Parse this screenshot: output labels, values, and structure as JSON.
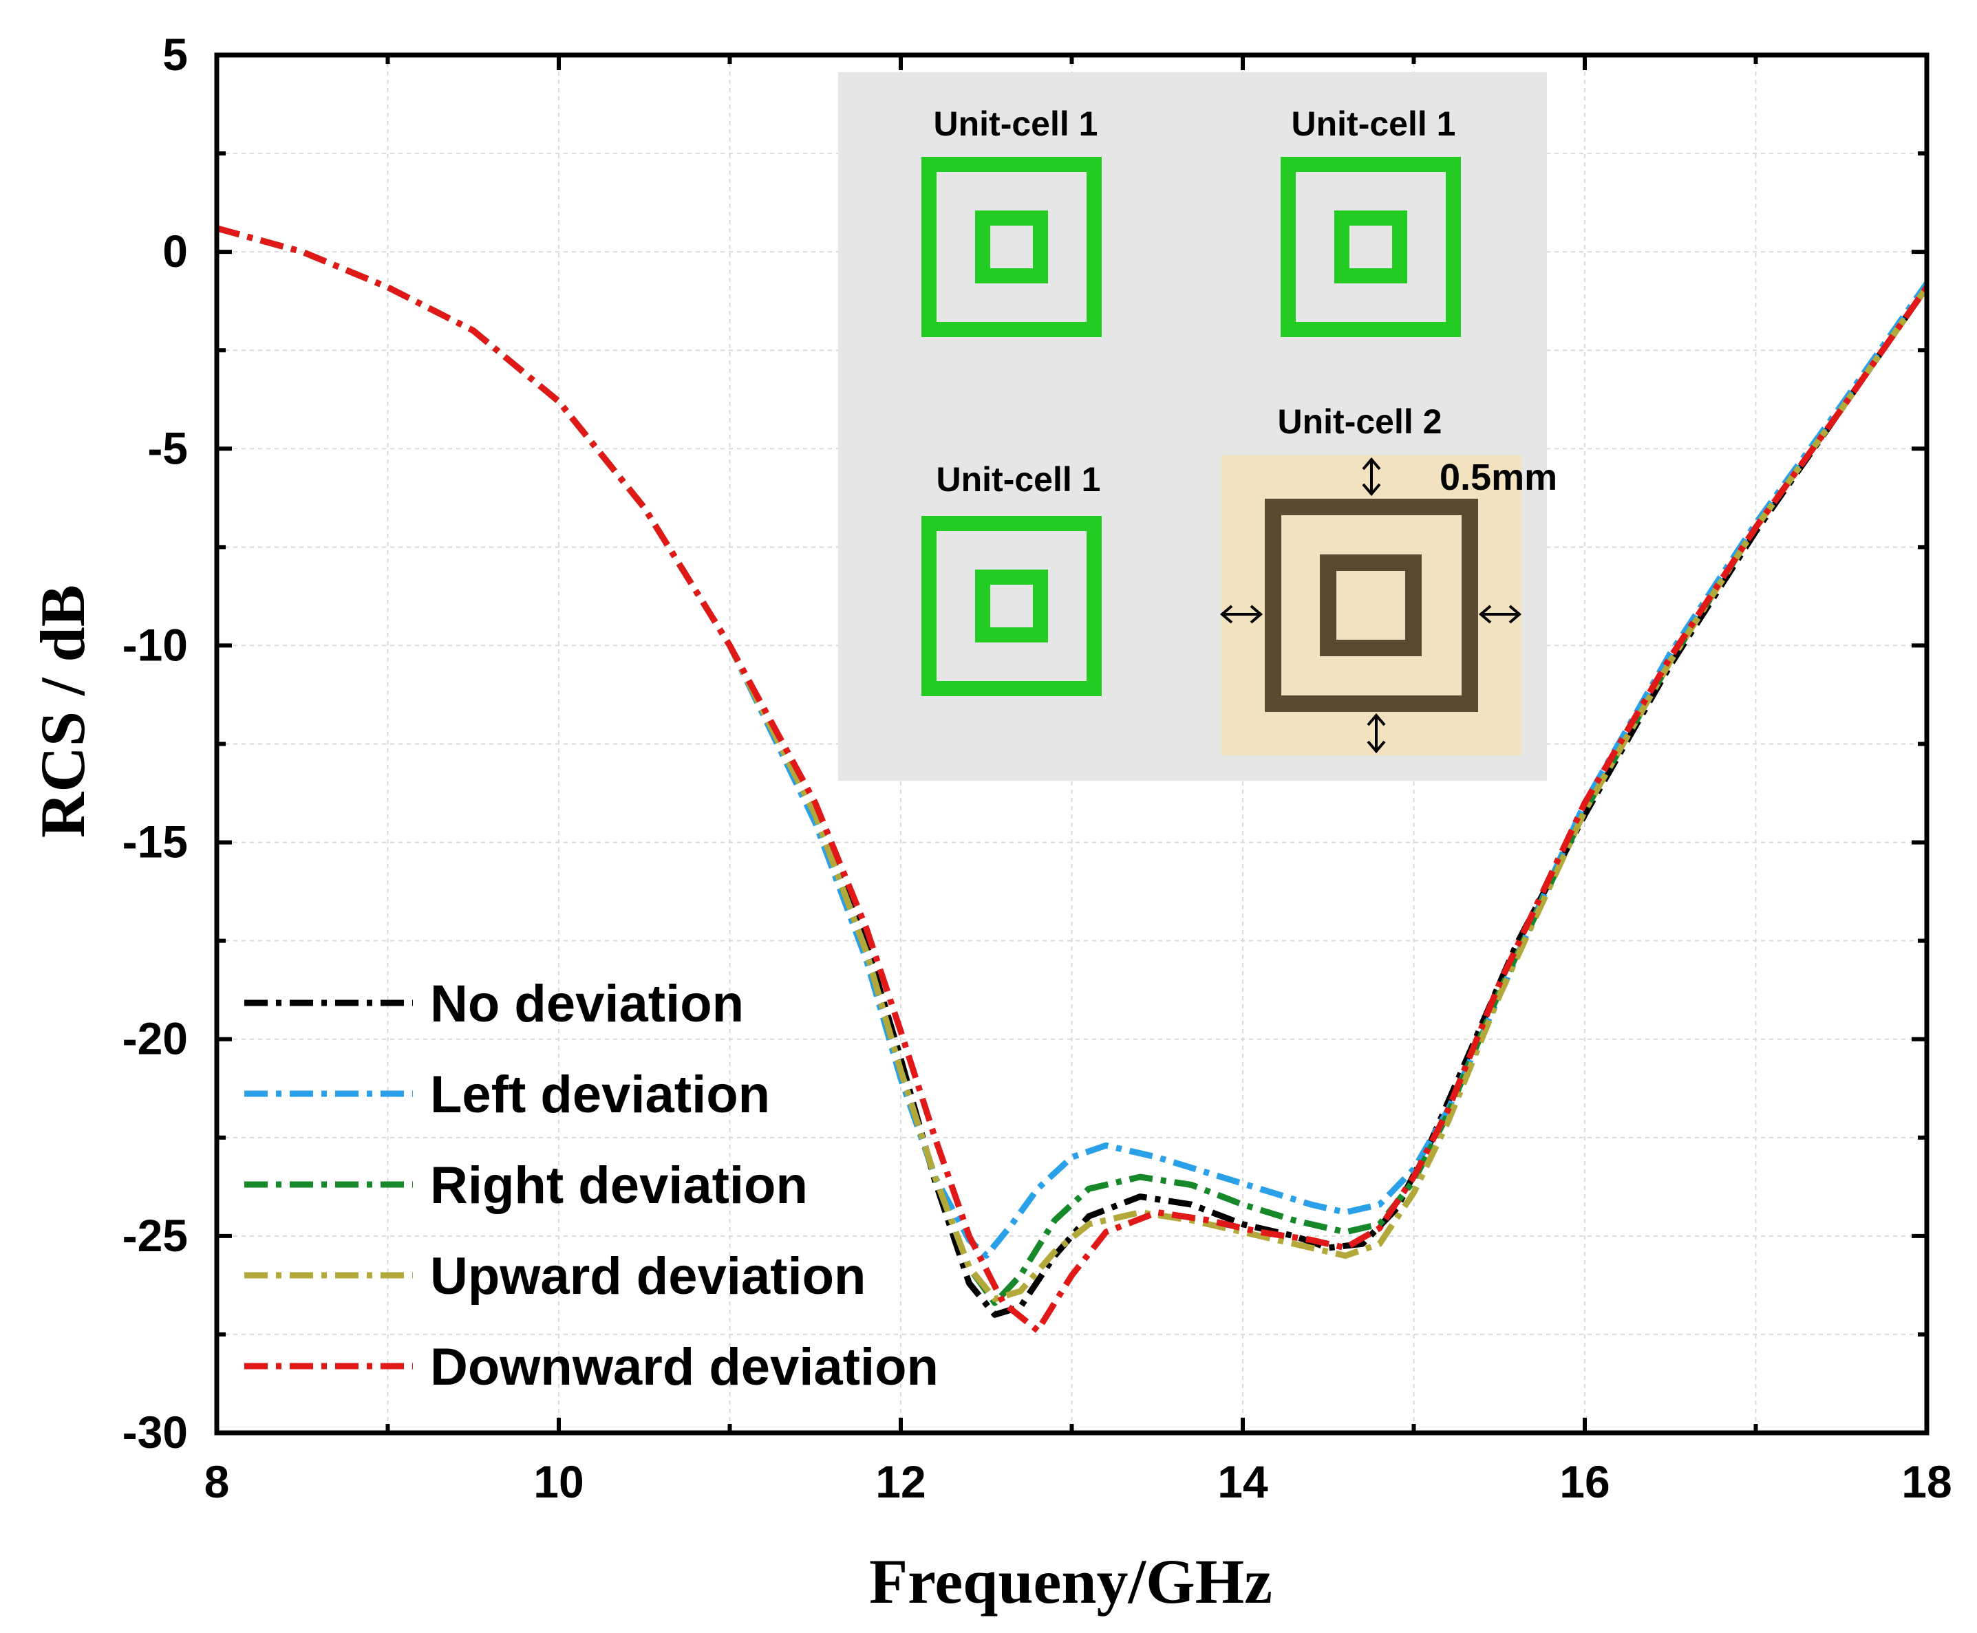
{
  "chart_data": {
    "type": "line",
    "title": "",
    "xlabel": "Frequeny/GHz",
    "ylabel": "RCS / dB",
    "xlim": [
      8,
      18
    ],
    "ylim": [
      -30,
      5
    ],
    "xticks": [
      8,
      10,
      12,
      14,
      16,
      18
    ],
    "yticks": [
      5,
      0,
      -5,
      -10,
      -15,
      -20,
      -25,
      -30
    ],
    "grid": true,
    "legend_position": "bottom-left",
    "series": [
      {
        "name": "No deviation",
        "color": "#000000",
        "points": [
          [
            8,
            0.6
          ],
          [
            8.5,
            0.0
          ],
          [
            9,
            -0.9
          ],
          [
            9.5,
            -2.0
          ],
          [
            10,
            -3.8
          ],
          [
            10.5,
            -6.5
          ],
          [
            11,
            -10.0
          ],
          [
            11.5,
            -14.3
          ],
          [
            11.8,
            -17.6
          ],
          [
            12.0,
            -20.5
          ],
          [
            12.2,
            -23.6
          ],
          [
            12.4,
            -26.2
          ],
          [
            12.55,
            -27.0
          ],
          [
            12.7,
            -26.8
          ],
          [
            12.9,
            -25.5
          ],
          [
            13.1,
            -24.5
          ],
          [
            13.4,
            -24.0
          ],
          [
            13.7,
            -24.2
          ],
          [
            14.0,
            -24.7
          ],
          [
            14.3,
            -25.0
          ],
          [
            14.5,
            -25.3
          ],
          [
            14.7,
            -25.2
          ],
          [
            14.9,
            -24.3
          ],
          [
            15.1,
            -22.6
          ],
          [
            15.3,
            -20.6
          ],
          [
            15.6,
            -17.6
          ],
          [
            16.0,
            -14.3
          ],
          [
            16.5,
            -10.5
          ],
          [
            17.0,
            -7.1
          ],
          [
            17.5,
            -4.0
          ],
          [
            18.0,
            -0.9
          ]
        ]
      },
      {
        "name": "Left deviation",
        "color": "#2aa0e8",
        "points": [
          [
            8,
            0.6
          ],
          [
            8.5,
            0.0
          ],
          [
            9,
            -0.9
          ],
          [
            9.5,
            -2.0
          ],
          [
            10,
            -3.8
          ],
          [
            10.5,
            -6.5
          ],
          [
            11,
            -10.0
          ],
          [
            11.5,
            -14.5
          ],
          [
            11.8,
            -18.0
          ],
          [
            12.0,
            -21.0
          ],
          [
            12.2,
            -23.5
          ],
          [
            12.4,
            -25.1
          ],
          [
            12.5,
            -25.5
          ],
          [
            12.65,
            -24.7
          ],
          [
            12.8,
            -23.8
          ],
          [
            13.0,
            -23.0
          ],
          [
            13.2,
            -22.7
          ],
          [
            13.5,
            -23.0
          ],
          [
            13.8,
            -23.4
          ],
          [
            14.1,
            -23.8
          ],
          [
            14.4,
            -24.2
          ],
          [
            14.6,
            -24.4
          ],
          [
            14.8,
            -24.2
          ],
          [
            15.0,
            -23.3
          ],
          [
            15.2,
            -21.8
          ],
          [
            15.5,
            -18.9
          ],
          [
            16.0,
            -14.0
          ],
          [
            16.5,
            -10.2
          ],
          [
            17.0,
            -6.9
          ],
          [
            17.5,
            -3.9
          ],
          [
            18.0,
            -0.8
          ]
        ]
      },
      {
        "name": "Right deviation",
        "color": "#16882a",
        "points": [
          [
            8,
            0.6
          ],
          [
            8.5,
            0.0
          ],
          [
            9,
            -0.9
          ],
          [
            9.5,
            -2.0
          ],
          [
            10,
            -3.8
          ],
          [
            10.5,
            -6.5
          ],
          [
            11,
            -10.0
          ],
          [
            11.5,
            -14.3
          ],
          [
            11.8,
            -17.8
          ],
          [
            12.0,
            -20.8
          ],
          [
            12.2,
            -23.5
          ],
          [
            12.4,
            -25.8
          ],
          [
            12.55,
            -26.7
          ],
          [
            12.7,
            -26.0
          ],
          [
            12.9,
            -24.6
          ],
          [
            13.1,
            -23.8
          ],
          [
            13.4,
            -23.5
          ],
          [
            13.7,
            -23.7
          ],
          [
            14.0,
            -24.2
          ],
          [
            14.3,
            -24.6
          ],
          [
            14.6,
            -24.9
          ],
          [
            14.8,
            -24.7
          ],
          [
            15.0,
            -23.6
          ],
          [
            15.2,
            -21.9
          ],
          [
            15.5,
            -18.8
          ],
          [
            16.0,
            -14.2
          ],
          [
            16.5,
            -10.4
          ],
          [
            17.0,
            -7.0
          ],
          [
            17.5,
            -4.0
          ],
          [
            18.0,
            -0.9
          ]
        ]
      },
      {
        "name": "Upward deviation",
        "color": "#b3a83a",
        "points": [
          [
            8,
            0.6
          ],
          [
            8.5,
            0.0
          ],
          [
            9,
            -0.9
          ],
          [
            9.5,
            -2.0
          ],
          [
            10,
            -3.8
          ],
          [
            10.5,
            -6.5
          ],
          [
            11,
            -10.0
          ],
          [
            11.5,
            -14.3
          ],
          [
            11.8,
            -17.8
          ],
          [
            12.0,
            -20.8
          ],
          [
            12.2,
            -23.5
          ],
          [
            12.4,
            -25.8
          ],
          [
            12.55,
            -26.6
          ],
          [
            12.7,
            -26.4
          ],
          [
            12.9,
            -25.4
          ],
          [
            13.1,
            -24.7
          ],
          [
            13.4,
            -24.4
          ],
          [
            13.7,
            -24.6
          ],
          [
            14.0,
            -24.9
          ],
          [
            14.3,
            -25.2
          ],
          [
            14.6,
            -25.5
          ],
          [
            14.8,
            -25.2
          ],
          [
            15.0,
            -23.9
          ],
          [
            15.2,
            -22.1
          ],
          [
            15.5,
            -18.9
          ],
          [
            16.0,
            -14.2
          ],
          [
            16.5,
            -10.4
          ],
          [
            17.0,
            -7.0
          ],
          [
            17.5,
            -4.0
          ],
          [
            18.0,
            -0.9
          ]
        ]
      },
      {
        "name": "Downward deviation",
        "color": "#e01818",
        "points": [
          [
            8,
            0.6
          ],
          [
            8.5,
            0.0
          ],
          [
            9,
            -0.9
          ],
          [
            9.5,
            -2.0
          ],
          [
            10,
            -3.8
          ],
          [
            10.5,
            -6.5
          ],
          [
            11,
            -10.0
          ],
          [
            11.5,
            -14.0
          ],
          [
            11.8,
            -17.2
          ],
          [
            12.0,
            -19.8
          ],
          [
            12.2,
            -22.5
          ],
          [
            12.4,
            -25.0
          ],
          [
            12.6,
            -26.7
          ],
          [
            12.8,
            -27.4
          ],
          [
            13.0,
            -26.0
          ],
          [
            13.2,
            -24.9
          ],
          [
            13.5,
            -24.4
          ],
          [
            13.8,
            -24.6
          ],
          [
            14.1,
            -24.9
          ],
          [
            14.4,
            -25.1
          ],
          [
            14.6,
            -25.3
          ],
          [
            14.8,
            -24.8
          ],
          [
            15.0,
            -23.5
          ],
          [
            15.2,
            -21.8
          ],
          [
            15.5,
            -18.6
          ],
          [
            16.0,
            -14.0
          ],
          [
            16.5,
            -10.3
          ],
          [
            17.0,
            -7.0
          ],
          [
            17.5,
            -4.0
          ],
          [
            18.0,
            -0.9
          ]
        ]
      }
    ]
  },
  "inset": {
    "cell_labels": [
      "Unit-cell 1",
      "Unit-cell 1",
      "Unit-cell 1",
      "Unit-cell 2"
    ],
    "dimension_label": "0.5mm",
    "cell1_color": "#22cc22",
    "cell2_color": "#5a4a32",
    "cell2_background": "#f2e2c0",
    "background": "#e6e6e6"
  }
}
